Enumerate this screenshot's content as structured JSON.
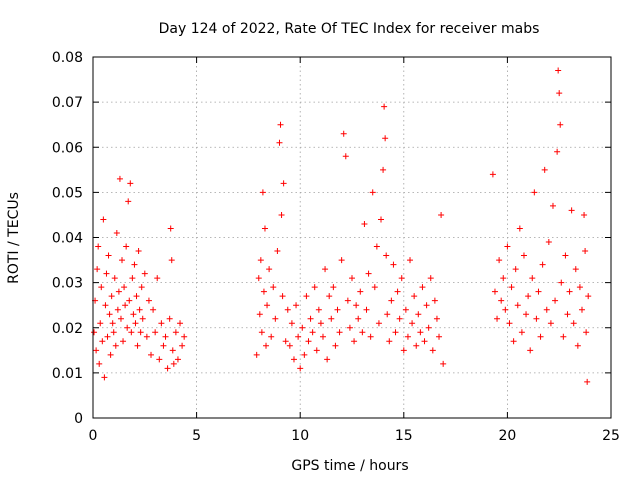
{
  "chart_data": {
    "type": "scatter",
    "title": "Day 124 of 2022, Rate Of TEC Index for receiver mabs",
    "xlabel": "GPS time / hours",
    "ylabel": "ROTI / TECUs",
    "xlim": [
      0,
      25
    ],
    "ylim": [
      0,
      0.08
    ],
    "xticks": [
      "0",
      "5",
      "10",
      "15",
      "20",
      "25"
    ],
    "yticks": [
      "0",
      "0.01",
      "0.02",
      "0.03",
      "0.04",
      "0.05",
      "0.06",
      "0.07",
      "0.08"
    ],
    "grid": true,
    "marker": "+",
    "color": "#ff0000",
    "points": [
      [
        0.05,
        0.019
      ],
      [
        0.1,
        0.026
      ],
      [
        0.15,
        0.015
      ],
      [
        0.2,
        0.033
      ],
      [
        0.25,
        0.038
      ],
      [
        0.3,
        0.012
      ],
      [
        0.35,
        0.021
      ],
      [
        0.4,
        0.029
      ],
      [
        0.45,
        0.017
      ],
      [
        0.5,
        0.044
      ],
      [
        0.55,
        0.009
      ],
      [
        0.6,
        0.025
      ],
      [
        0.65,
        0.032
      ],
      [
        0.7,
        0.018
      ],
      [
        0.75,
        0.036
      ],
      [
        0.8,
        0.023
      ],
      [
        0.85,
        0.014
      ],
      [
        0.9,
        0.027
      ],
      [
        0.95,
        0.021
      ],
      [
        1.0,
        0.019
      ],
      [
        1.05,
        0.031
      ],
      [
        1.1,
        0.016
      ],
      [
        1.15,
        0.041
      ],
      [
        1.2,
        0.024
      ],
      [
        1.25,
        0.028
      ],
      [
        1.3,
        0.053
      ],
      [
        1.35,
        0.022
      ],
      [
        1.4,
        0.035
      ],
      [
        1.45,
        0.017
      ],
      [
        1.5,
        0.029
      ],
      [
        1.55,
        0.025
      ],
      [
        1.6,
        0.038
      ],
      [
        1.65,
        0.02
      ],
      [
        1.7,
        0.048
      ],
      [
        1.75,
        0.026
      ],
      [
        1.8,
        0.052
      ],
      [
        1.85,
        0.019
      ],
      [
        1.9,
        0.031
      ],
      [
        1.95,
        0.023
      ],
      [
        2.0,
        0.034
      ],
      [
        2.05,
        0.021
      ],
      [
        2.1,
        0.027
      ],
      [
        2.15,
        0.016
      ],
      [
        2.2,
        0.037
      ],
      [
        2.25,
        0.024
      ],
      [
        2.3,
        0.019
      ],
      [
        2.35,
        0.029
      ],
      [
        2.4,
        0.022
      ],
      [
        2.5,
        0.032
      ],
      [
        2.6,
        0.018
      ],
      [
        2.7,
        0.026
      ],
      [
        2.8,
        0.014
      ],
      [
        2.9,
        0.024
      ],
      [
        3.0,
        0.019
      ],
      [
        3.1,
        0.031
      ],
      [
        3.2,
        0.013
      ],
      [
        3.3,
        0.021
      ],
      [
        3.4,
        0.016
      ],
      [
        3.5,
        0.018
      ],
      [
        3.6,
        0.011
      ],
      [
        3.7,
        0.022
      ],
      [
        3.75,
        0.042
      ],
      [
        3.8,
        0.035
      ],
      [
        3.85,
        0.015
      ],
      [
        3.9,
        0.012
      ],
      [
        4.0,
        0.019
      ],
      [
        4.1,
        0.013
      ],
      [
        4.2,
        0.021
      ],
      [
        4.3,
        0.016
      ],
      [
        4.4,
        0.018
      ],
      [
        7.9,
        0.014
      ],
      [
        8.0,
        0.031
      ],
      [
        8.05,
        0.023
      ],
      [
        8.1,
        0.035
      ],
      [
        8.15,
        0.019
      ],
      [
        8.2,
        0.05
      ],
      [
        8.25,
        0.028
      ],
      [
        8.3,
        0.042
      ],
      [
        8.35,
        0.016
      ],
      [
        8.4,
        0.025
      ],
      [
        8.5,
        0.033
      ],
      [
        8.6,
        0.018
      ],
      [
        8.7,
        0.029
      ],
      [
        8.8,
        0.022
      ],
      [
        8.9,
        0.037
      ],
      [
        9.0,
        0.061
      ],
      [
        9.05,
        0.065
      ],
      [
        9.1,
        0.045
      ],
      [
        9.15,
        0.027
      ],
      [
        9.2,
        0.052
      ],
      [
        9.3,
        0.017
      ],
      [
        9.4,
        0.024
      ],
      [
        9.5,
        0.016
      ],
      [
        9.6,
        0.021
      ],
      [
        9.7,
        0.013
      ],
      [
        9.8,
        0.025
      ],
      [
        9.9,
        0.018
      ],
      [
        10.0,
        0.011
      ],
      [
        10.1,
        0.02
      ],
      [
        10.2,
        0.014
      ],
      [
        10.3,
        0.027
      ],
      [
        10.4,
        0.017
      ],
      [
        10.5,
        0.022
      ],
      [
        10.6,
        0.019
      ],
      [
        10.7,
        0.029
      ],
      [
        10.8,
        0.015
      ],
      [
        10.9,
        0.024
      ],
      [
        11.0,
        0.021
      ],
      [
        11.1,
        0.018
      ],
      [
        11.2,
        0.033
      ],
      [
        11.3,
        0.013
      ],
      [
        11.4,
        0.027
      ],
      [
        11.5,
        0.022
      ],
      [
        11.6,
        0.029
      ],
      [
        11.7,
        0.016
      ],
      [
        11.8,
        0.024
      ],
      [
        11.9,
        0.019
      ],
      [
        12.0,
        0.035
      ],
      [
        12.1,
        0.063
      ],
      [
        12.2,
        0.058
      ],
      [
        12.3,
        0.026
      ],
      [
        12.4,
        0.02
      ],
      [
        12.5,
        0.031
      ],
      [
        12.6,
        0.017
      ],
      [
        12.7,
        0.025
      ],
      [
        12.8,
        0.022
      ],
      [
        12.9,
        0.028
      ],
      [
        13.0,
        0.019
      ],
      [
        13.1,
        0.043
      ],
      [
        13.2,
        0.024
      ],
      [
        13.3,
        0.032
      ],
      [
        13.4,
        0.018
      ],
      [
        13.5,
        0.05
      ],
      [
        13.6,
        0.029
      ],
      [
        13.7,
        0.038
      ],
      [
        13.8,
        0.021
      ],
      [
        13.9,
        0.044
      ],
      [
        14.0,
        0.055
      ],
      [
        14.05,
        0.069
      ],
      [
        14.1,
        0.062
      ],
      [
        14.15,
        0.036
      ],
      [
        14.2,
        0.023
      ],
      [
        14.3,
        0.017
      ],
      [
        14.4,
        0.026
      ],
      [
        14.5,
        0.034
      ],
      [
        14.6,
        0.019
      ],
      [
        14.7,
        0.028
      ],
      [
        14.8,
        0.022
      ],
      [
        14.9,
        0.031
      ],
      [
        15.0,
        0.015
      ],
      [
        15.1,
        0.024
      ],
      [
        15.2,
        0.018
      ],
      [
        15.3,
        0.035
      ],
      [
        15.4,
        0.021
      ],
      [
        15.5,
        0.027
      ],
      [
        15.6,
        0.016
      ],
      [
        15.7,
        0.023
      ],
      [
        15.8,
        0.019
      ],
      [
        15.9,
        0.029
      ],
      [
        16.0,
        0.017
      ],
      [
        16.1,
        0.025
      ],
      [
        16.2,
        0.02
      ],
      [
        16.3,
        0.031
      ],
      [
        16.4,
        0.015
      ],
      [
        16.5,
        0.026
      ],
      [
        16.6,
        0.022
      ],
      [
        16.7,
        0.018
      ],
      [
        16.8,
        0.045
      ],
      [
        16.9,
        0.012
      ],
      [
        19.3,
        0.054
      ],
      [
        19.4,
        0.028
      ],
      [
        19.5,
        0.022
      ],
      [
        19.6,
        0.035
      ],
      [
        19.7,
        0.026
      ],
      [
        19.8,
        0.031
      ],
      [
        19.9,
        0.024
      ],
      [
        20.0,
        0.038
      ],
      [
        20.1,
        0.021
      ],
      [
        20.2,
        0.029
      ],
      [
        20.3,
        0.017
      ],
      [
        20.4,
        0.033
      ],
      [
        20.5,
        0.025
      ],
      [
        20.6,
        0.042
      ],
      [
        20.7,
        0.019
      ],
      [
        20.8,
        0.036
      ],
      [
        20.9,
        0.023
      ],
      [
        21.0,
        0.027
      ],
      [
        21.1,
        0.015
      ],
      [
        21.2,
        0.031
      ],
      [
        21.3,
        0.05
      ],
      [
        21.4,
        0.022
      ],
      [
        21.5,
        0.028
      ],
      [
        21.6,
        0.018
      ],
      [
        21.7,
        0.034
      ],
      [
        21.8,
        0.055
      ],
      [
        21.9,
        0.024
      ],
      [
        22.0,
        0.039
      ],
      [
        22.1,
        0.021
      ],
      [
        22.2,
        0.047
      ],
      [
        22.3,
        0.026
      ],
      [
        22.4,
        0.059
      ],
      [
        22.45,
        0.077
      ],
      [
        22.5,
        0.072
      ],
      [
        22.55,
        0.065
      ],
      [
        22.6,
        0.03
      ],
      [
        22.7,
        0.018
      ],
      [
        22.8,
        0.036
      ],
      [
        22.9,
        0.023
      ],
      [
        23.0,
        0.028
      ],
      [
        23.1,
        0.046
      ],
      [
        23.2,
        0.021
      ],
      [
        23.3,
        0.033
      ],
      [
        23.4,
        0.016
      ],
      [
        23.5,
        0.029
      ],
      [
        23.6,
        0.024
      ],
      [
        23.7,
        0.045
      ],
      [
        23.75,
        0.037
      ],
      [
        23.8,
        0.019
      ],
      [
        23.85,
        0.008
      ],
      [
        23.9,
        0.027
      ]
    ]
  }
}
